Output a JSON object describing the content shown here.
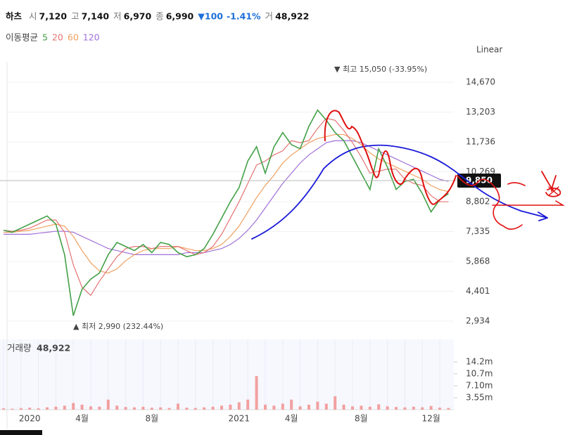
{
  "header": {
    "name": "하츠",
    "items": [
      {
        "label": "시",
        "value": "7,120"
      },
      {
        "label": "고",
        "value": "7,140"
      },
      {
        "label": "저",
        "value": "6,970"
      },
      {
        "label": "종",
        "value": "6,990"
      }
    ],
    "change": "▼100",
    "change_pct": "-1.41%",
    "volume_label": "거",
    "volume_value": "48,922"
  },
  "ma_legend": {
    "title": "이동평균"
  },
  "scale_mode": "Linear",
  "price_tag": "9,850",
  "chart_data": [
    {
      "type": "line",
      "high_label": "▼ 최고 15,050 (-33.95%)",
      "low_label": "▲ 최저 2,990 (232.44%)",
      "categories": [
        null,
        null,
        null,
        "2020",
        null,
        null,
        null,
        null,
        null,
        "4월",
        null,
        null,
        null,
        null,
        null,
        null,
        null,
        "8월",
        null,
        null,
        null,
        null,
        null,
        null,
        null,
        null,
        null,
        "2021",
        null,
        null,
        null,
        null,
        null,
        "4월",
        null,
        null,
        null,
        null,
        null,
        null,
        null,
        "8월",
        null,
        null,
        null,
        null,
        null,
        null,
        null,
        "12월",
        null,
        null
      ],
      "series": [
        {
          "name": "5",
          "color": "#43a047",
          "values": [
            7400,
            7300,
            7500,
            7700,
            7900,
            8100,
            7700,
            6200,
            3200,
            4500,
            5000,
            5300,
            6200,
            6800,
            6600,
            6400,
            6700,
            6300,
            6800,
            6700,
            6300,
            6100,
            6200,
            6500,
            7200,
            8000,
            8800,
            9500,
            10800,
            11500,
            10200,
            11500,
            12200,
            11600,
            11400,
            12500,
            13300,
            12800,
            12200,
            11800,
            11000,
            10200,
            9400,
            11400,
            10500,
            9400,
            9800,
            9900,
            9200,
            8300,
            8900,
            9200
          ]
        },
        {
          "name": "20",
          "color": "#e57373",
          "values": [
            7400,
            7350,
            7400,
            7500,
            7700,
            7900,
            7900,
            7300,
            5700,
            4600,
            4200,
            4900,
            5500,
            6100,
            6500,
            6600,
            6600,
            6500,
            6600,
            6600,
            6600,
            6400,
            6200,
            6300,
            6600,
            7200,
            8000,
            8800,
            9700,
            10600,
            10800,
            11100,
            11300,
            11800,
            11700,
            11800,
            12400,
            12900,
            12800,
            12300,
            11700,
            11000,
            10200,
            10300,
            10400,
            10400,
            9900,
            9700,
            9600,
            9100,
            8800,
            8800
          ]
        },
        {
          "name": "60",
          "color": "#f0a060",
          "values": [
            7300,
            7300,
            7350,
            7400,
            7500,
            7600,
            7700,
            7600,
            7100,
            6400,
            5800,
            5400,
            5300,
            5500,
            5900,
            6200,
            6400,
            6500,
            6500,
            6500,
            6600,
            6500,
            6400,
            6400,
            6500,
            6700,
            7100,
            7600,
            8300,
            9000,
            9600,
            10100,
            10700,
            11100,
            11400,
            11700,
            11900,
            12000,
            12100,
            12100,
            11900,
            11600,
            11200,
            10900,
            10700,
            10500,
            10300,
            10100,
            9900,
            9600,
            9400,
            9300
          ]
        },
        {
          "name": "120",
          "color": "#a070d8",
          "values": [
            7200,
            7200,
            7200,
            7200,
            7250,
            7300,
            7350,
            7350,
            7300,
            7100,
            6900,
            6700,
            6500,
            6400,
            6300,
            6200,
            6200,
            6200,
            6200,
            6200,
            6200,
            6300,
            6300,
            6300,
            6400,
            6500,
            6700,
            7000,
            7400,
            7900,
            8500,
            9100,
            9700,
            10200,
            10700,
            11100,
            11400,
            11700,
            11800,
            11800,
            11800,
            11700,
            11500,
            11300,
            11100,
            10900,
            10700,
            10500,
            10300,
            10100,
            9900,
            9800
          ]
        }
      ],
      "ylim": [
        2140,
        15670
      ],
      "yticks": [
        {
          "value": 2934,
          "label": "2,934"
        },
        {
          "value": 4401,
          "label": "4,401"
        },
        {
          "value": 5868,
          "label": "5,868"
        },
        {
          "value": 7335,
          "label": "7,335"
        },
        {
          "value": 8802,
          "label": "8,802"
        },
        {
          "value": 10269,
          "label": "10,269"
        },
        {
          "value": 11736,
          "label": "11,736"
        },
        {
          "value": 13203,
          "label": "13,203"
        },
        {
          "value": 14670,
          "label": "14,670"
        }
      ],
      "grid": true
    },
    {
      "type": "bar",
      "title": "거래량",
      "title_value": "48,922",
      "color": "#f2a0a0",
      "values": [
        400000,
        300000,
        500000,
        600000,
        400000,
        700000,
        900000,
        1200000,
        2000000,
        1500000,
        1000000,
        900000,
        3000000,
        1200000,
        800000,
        700000,
        900000,
        600000,
        700000,
        500000,
        1800000,
        600000,
        500000,
        700000,
        900000,
        1200000,
        1500000,
        2200000,
        3000000,
        10000000,
        1500000,
        1200000,
        1800000,
        3000000,
        1000000,
        1500000,
        2400000,
        1800000,
        4000000,
        1500000,
        1000000,
        1200000,
        900000,
        1600000,
        1000000,
        800000,
        700000,
        900000,
        700000,
        1100000,
        600000,
        500000
      ],
      "ylim": [
        0,
        20900000
      ],
      "yticks": [
        {
          "value": 3550000,
          "label": "3.55m"
        },
        {
          "value": 7100000,
          "label": "7.10m"
        },
        {
          "value": 10700000,
          "label": "10.7m"
        },
        {
          "value": 14200000,
          "label": "14.2m"
        }
      ]
    }
  ]
}
